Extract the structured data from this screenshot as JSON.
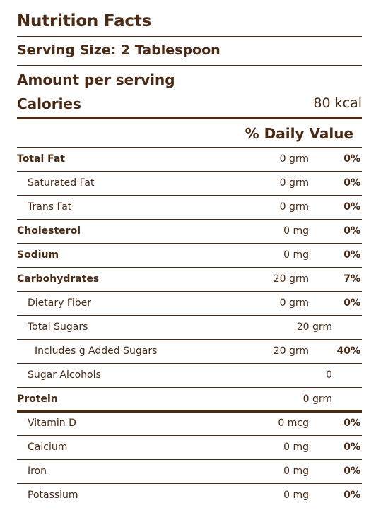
{
  "title": "Nutrition Facts",
  "serving_size": "Serving Size: 2 Tablespoon",
  "amount_per_serving": "Amount per serving",
  "calories": {
    "label": "Calories",
    "value": "80 kcal"
  },
  "daily_value_header": "% Daily Value",
  "nutrients": [
    {
      "name": "Total Fat",
      "amount": "0 grm",
      "percent": "0%"
    },
    {
      "name": "Saturated Fat",
      "amount": "0 grm",
      "percent": "0%"
    },
    {
      "name": "Trans Fat",
      "amount": "0 grm",
      "percent": "0%"
    },
    {
      "name": "Cholesterol",
      "amount": "0 mg",
      "percent": "0%"
    },
    {
      "name": "Sodium",
      "amount": "0 mg",
      "percent": "0%"
    },
    {
      "name": "Carbohydrates",
      "amount": "20 grm",
      "percent": "7%"
    },
    {
      "name": "Dietary Fiber",
      "amount": "0 grm",
      "percent": "0%"
    },
    {
      "name": "Total Sugars",
      "amount": "20 grm",
      "percent": ""
    },
    {
      "name": "Includes g Added Sugars",
      "amount": "20 grm",
      "percent": "40%"
    },
    {
      "name": "Sugar Alcohols",
      "amount": "0",
      "percent": ""
    },
    {
      "name": "Protein",
      "amount": "0 grm",
      "percent": ""
    },
    {
      "name": "Vitamin D",
      "amount": "0 mcg",
      "percent": "0%"
    },
    {
      "name": "Calcium",
      "amount": "0 mg",
      "percent": "0%"
    },
    {
      "name": "Iron",
      "amount": "0 mg",
      "percent": "0%"
    },
    {
      "name": "Potassium",
      "amount": "0 mg",
      "percent": "0%"
    }
  ]
}
